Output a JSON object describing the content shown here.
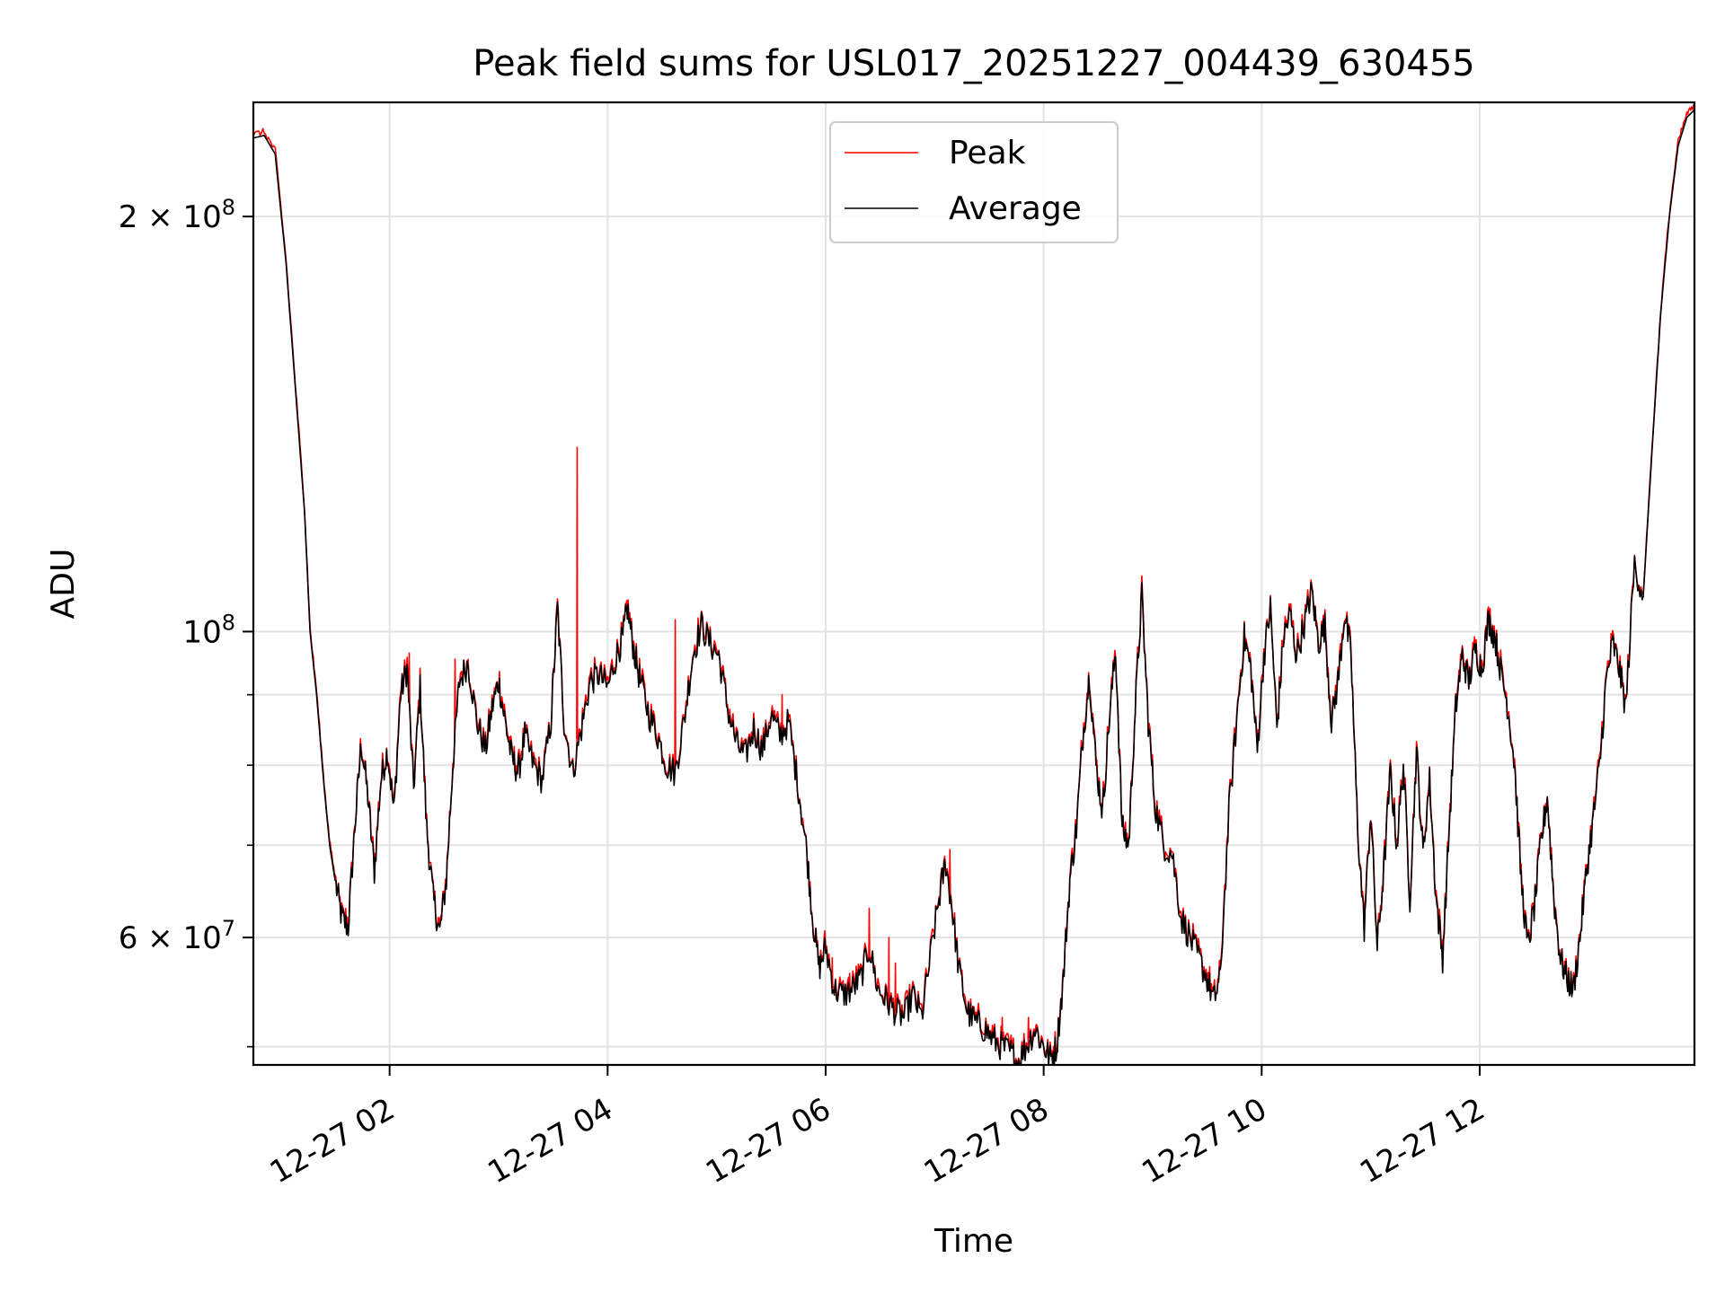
{
  "chart_data": {
    "type": "line",
    "title": "Peak field sums for USL017_20251227_004439_630455",
    "xlabel": "Time",
    "ylabel": "ADU",
    "yscale": "log",
    "ylim": [
      48500000,
      242000000
    ],
    "xlim_hours": [
      0.75,
      13.97
    ],
    "grid": true,
    "legend_position": "upper center",
    "x_ticks": [
      {
        "hour": 2,
        "label": "12-27 02"
      },
      {
        "hour": 4,
        "label": "12-27 04"
      },
      {
        "hour": 6,
        "label": "12-27 06"
      },
      {
        "hour": 8,
        "label": "12-27 08"
      },
      {
        "hour": 10,
        "label": "12-27 10"
      },
      {
        "hour": 12,
        "label": "12-27 12"
      }
    ],
    "y_major_ticks": [
      {
        "value": 60000000,
        "mantissa": "6",
        "exponent": "7"
      },
      {
        "value": 100000000,
        "mantissa": "",
        "exponent": "8"
      },
      {
        "value": 200000000,
        "mantissa": "2",
        "exponent": "8"
      }
    ],
    "y_minor_ticks": [
      50000000,
      70000000,
      80000000,
      90000000
    ],
    "series": [
      {
        "name": "Peak",
        "color": "#ff0000"
      },
      {
        "name": "Average",
        "color": "#000000"
      }
    ],
    "average_points": [
      [
        0.75,
        228000000
      ],
      [
        0.85,
        229000000
      ],
      [
        0.95,
        222000000
      ],
      [
        1.05,
        185000000
      ],
      [
        1.15,
        145000000
      ],
      [
        1.22,
        122000000
      ],
      [
        1.27,
        100000000
      ],
      [
        1.33,
        90000000
      ],
      [
        1.4,
        77000000
      ],
      [
        1.45,
        70000000
      ],
      [
        1.5,
        66000000
      ],
      [
        1.56,
        62000000
      ],
      [
        1.62,
        61000000
      ],
      [
        1.68,
        72000000
      ],
      [
        1.74,
        83000000
      ],
      [
        1.8,
        76000000
      ],
      [
        1.86,
        67000000
      ],
      [
        1.92,
        78000000
      ],
      [
        1.98,
        82000000
      ],
      [
        2.04,
        74000000
      ],
      [
        2.1,
        90000000
      ],
      [
        2.16,
        94000000
      ],
      [
        2.22,
        77000000
      ],
      [
        2.28,
        91000000
      ],
      [
        2.34,
        72000000
      ],
      [
        2.4,
        64000000
      ],
      [
        2.46,
        60500000
      ],
      [
        2.52,
        66000000
      ],
      [
        2.58,
        80000000
      ],
      [
        2.64,
        92000000
      ],
      [
        2.72,
        95000000
      ],
      [
        2.8,
        86000000
      ],
      [
        2.88,
        82000000
      ],
      [
        2.94,
        88000000
      ],
      [
        3.0,
        92000000
      ],
      [
        3.06,
        86000000
      ],
      [
        3.12,
        81000000
      ],
      [
        3.18,
        79000000
      ],
      [
        3.24,
        84000000
      ],
      [
        3.32,
        80000000
      ],
      [
        3.4,
        78000000
      ],
      [
        3.48,
        86000000
      ],
      [
        3.54,
        104000000
      ],
      [
        3.6,
        86000000
      ],
      [
        3.68,
        79000000
      ],
      [
        3.76,
        85000000
      ],
      [
        3.84,
        92000000
      ],
      [
        3.92,
        93000000
      ],
      [
        4.0,
        91000000
      ],
      [
        4.08,
        96000000
      ],
      [
        4.14,
        99000000
      ],
      [
        4.18,
        104000000
      ],
      [
        4.24,
        97000000
      ],
      [
        4.3,
        92000000
      ],
      [
        4.38,
        87000000
      ],
      [
        4.46,
        84000000
      ],
      [
        4.54,
        80000000
      ],
      [
        4.62,
        79000000
      ],
      [
        4.7,
        86000000
      ],
      [
        4.78,
        96000000
      ],
      [
        4.86,
        101000000
      ],
      [
        4.94,
        98000000
      ],
      [
        5.02,
        96000000
      ],
      [
        5.1,
        88000000
      ],
      [
        5.18,
        83000000
      ],
      [
        5.26,
        81000000
      ],
      [
        5.34,
        85000000
      ],
      [
        5.42,
        82000000
      ],
      [
        5.5,
        87000000
      ],
      [
        5.58,
        84000000
      ],
      [
        5.66,
        86000000
      ],
      [
        5.74,
        78000000
      ],
      [
        5.82,
        70000000
      ],
      [
        5.88,
        62000000
      ],
      [
        5.94,
        57000000
      ],
      [
        6.0,
        59000000
      ],
      [
        6.08,
        55000000
      ],
      [
        6.16,
        54500000
      ],
      [
        6.24,
        55000000
      ],
      [
        6.32,
        56000000
      ],
      [
        6.4,
        59000000
      ],
      [
        6.48,
        55000000
      ],
      [
        6.56,
        54000000
      ],
      [
        6.64,
        53000000
      ],
      [
        6.72,
        52500000
      ],
      [
        6.8,
        54500000
      ],
      [
        6.88,
        52500000
      ],
      [
        6.96,
        58000000
      ],
      [
        7.04,
        64000000
      ],
      [
        7.1,
        68000000
      ],
      [
        7.16,
        63000000
      ],
      [
        7.22,
        57000000
      ],
      [
        7.3,
        53000000
      ],
      [
        7.38,
        52000000
      ],
      [
        7.46,
        51500000
      ],
      [
        7.54,
        50500000
      ],
      [
        7.62,
        50000000
      ],
      [
        7.7,
        49500000
      ],
      [
        7.76,
        48700000
      ],
      [
        7.84,
        50000000
      ],
      [
        7.92,
        51500000
      ],
      [
        8.0,
        50000000
      ],
      [
        8.06,
        49000000
      ],
      [
        8.12,
        50000000
      ],
      [
        8.18,
        56000000
      ],
      [
        8.24,
        66000000
      ],
      [
        8.3,
        72000000
      ],
      [
        8.36,
        84000000
      ],
      [
        8.42,
        93000000
      ],
      [
        8.48,
        80000000
      ],
      [
        8.54,
        74000000
      ],
      [
        8.6,
        86000000
      ],
      [
        8.66,
        97000000
      ],
      [
        8.72,
        72000000
      ],
      [
        8.78,
        70000000
      ],
      [
        8.84,
        88000000
      ],
      [
        8.9,
        106000000
      ],
      [
        8.96,
        86000000
      ],
      [
        9.02,
        75000000
      ],
      [
        9.1,
        70000000
      ],
      [
        9.18,
        69000000
      ],
      [
        9.26,
        62000000
      ],
      [
        9.34,
        60000000
      ],
      [
        9.42,
        58000000
      ],
      [
        9.5,
        56000000
      ],
      [
        9.56,
        54000000
      ],
      [
        9.62,
        56000000
      ],
      [
        9.7,
        74000000
      ],
      [
        9.78,
        88000000
      ],
      [
        9.84,
        99000000
      ],
      [
        9.9,
        94000000
      ],
      [
        9.96,
        82000000
      ],
      [
        10.02,
        96000000
      ],
      [
        10.08,
        104000000
      ],
      [
        10.14,
        85000000
      ],
      [
        10.2,
        99000000
      ],
      [
        10.26,
        103000000
      ],
      [
        10.32,
        96000000
      ],
      [
        10.4,
        102000000
      ],
      [
        10.46,
        107000000
      ],
      [
        10.52,
        98000000
      ],
      [
        10.58,
        101000000
      ],
      [
        10.64,
        86000000
      ],
      [
        10.7,
        92000000
      ],
      [
        10.76,
        103000000
      ],
      [
        10.82,
        96000000
      ],
      [
        10.88,
        72000000
      ],
      [
        10.94,
        61000000
      ],
      [
        11.0,
        74000000
      ],
      [
        11.06,
        59000000
      ],
      [
        11.12,
        67000000
      ],
      [
        11.18,
        79000000
      ],
      [
        11.24,
        70000000
      ],
      [
        11.3,
        80000000
      ],
      [
        11.36,
        64000000
      ],
      [
        11.42,
        82000000
      ],
      [
        11.48,
        69000000
      ],
      [
        11.54,
        78000000
      ],
      [
        11.6,
        64000000
      ],
      [
        11.66,
        58000000
      ],
      [
        11.72,
        72000000
      ],
      [
        11.78,
        88000000
      ],
      [
        11.84,
        96000000
      ],
      [
        11.9,
        92000000
      ],
      [
        11.96,
        97000000
      ],
      [
        12.02,
        94000000
      ],
      [
        12.08,
        102000000
      ],
      [
        12.14,
        99000000
      ],
      [
        12.2,
        93000000
      ],
      [
        12.26,
        88000000
      ],
      [
        12.32,
        80000000
      ],
      [
        12.38,
        66000000
      ],
      [
        12.44,
        59000000
      ],
      [
        12.5,
        63000000
      ],
      [
        12.56,
        70000000
      ],
      [
        12.62,
        76000000
      ],
      [
        12.68,
        64000000
      ],
      [
        12.74,
        58000000
      ],
      [
        12.8,
        56000000
      ],
      [
        12.86,
        55000000
      ],
      [
        12.92,
        60000000
      ],
      [
        12.98,
        67000000
      ],
      [
        13.04,
        73000000
      ],
      [
        13.1,
        80000000
      ],
      [
        13.16,
        92000000
      ],
      [
        13.22,
        98000000
      ],
      [
        13.28,
        94000000
      ],
      [
        13.34,
        88000000
      ],
      [
        13.42,
        112000000
      ],
      [
        13.5,
        106000000
      ],
      [
        13.58,
        135000000
      ],
      [
        13.66,
        170000000
      ],
      [
        13.74,
        200000000
      ],
      [
        13.82,
        225000000
      ],
      [
        13.9,
        236000000
      ],
      [
        13.97,
        239000000
      ]
    ],
    "peak_spikes": [
      [
        3.72,
        136000000
      ],
      [
        6.06,
        58000000
      ],
      [
        6.22,
        56500000
      ],
      [
        6.4,
        63000000
      ],
      [
        6.58,
        60000000
      ],
      [
        6.64,
        57500000
      ],
      [
        7.14,
        69500000
      ],
      [
        7.62,
        52500000
      ],
      [
        7.86,
        52500000
      ],
      [
        4.62,
        102000000
      ],
      [
        5.6,
        90000000
      ],
      [
        2.18,
        96500000
      ],
      [
        2.6,
        95500000
      ]
    ]
  },
  "legend": {
    "peak_label": "Peak",
    "average_label": "Average"
  }
}
